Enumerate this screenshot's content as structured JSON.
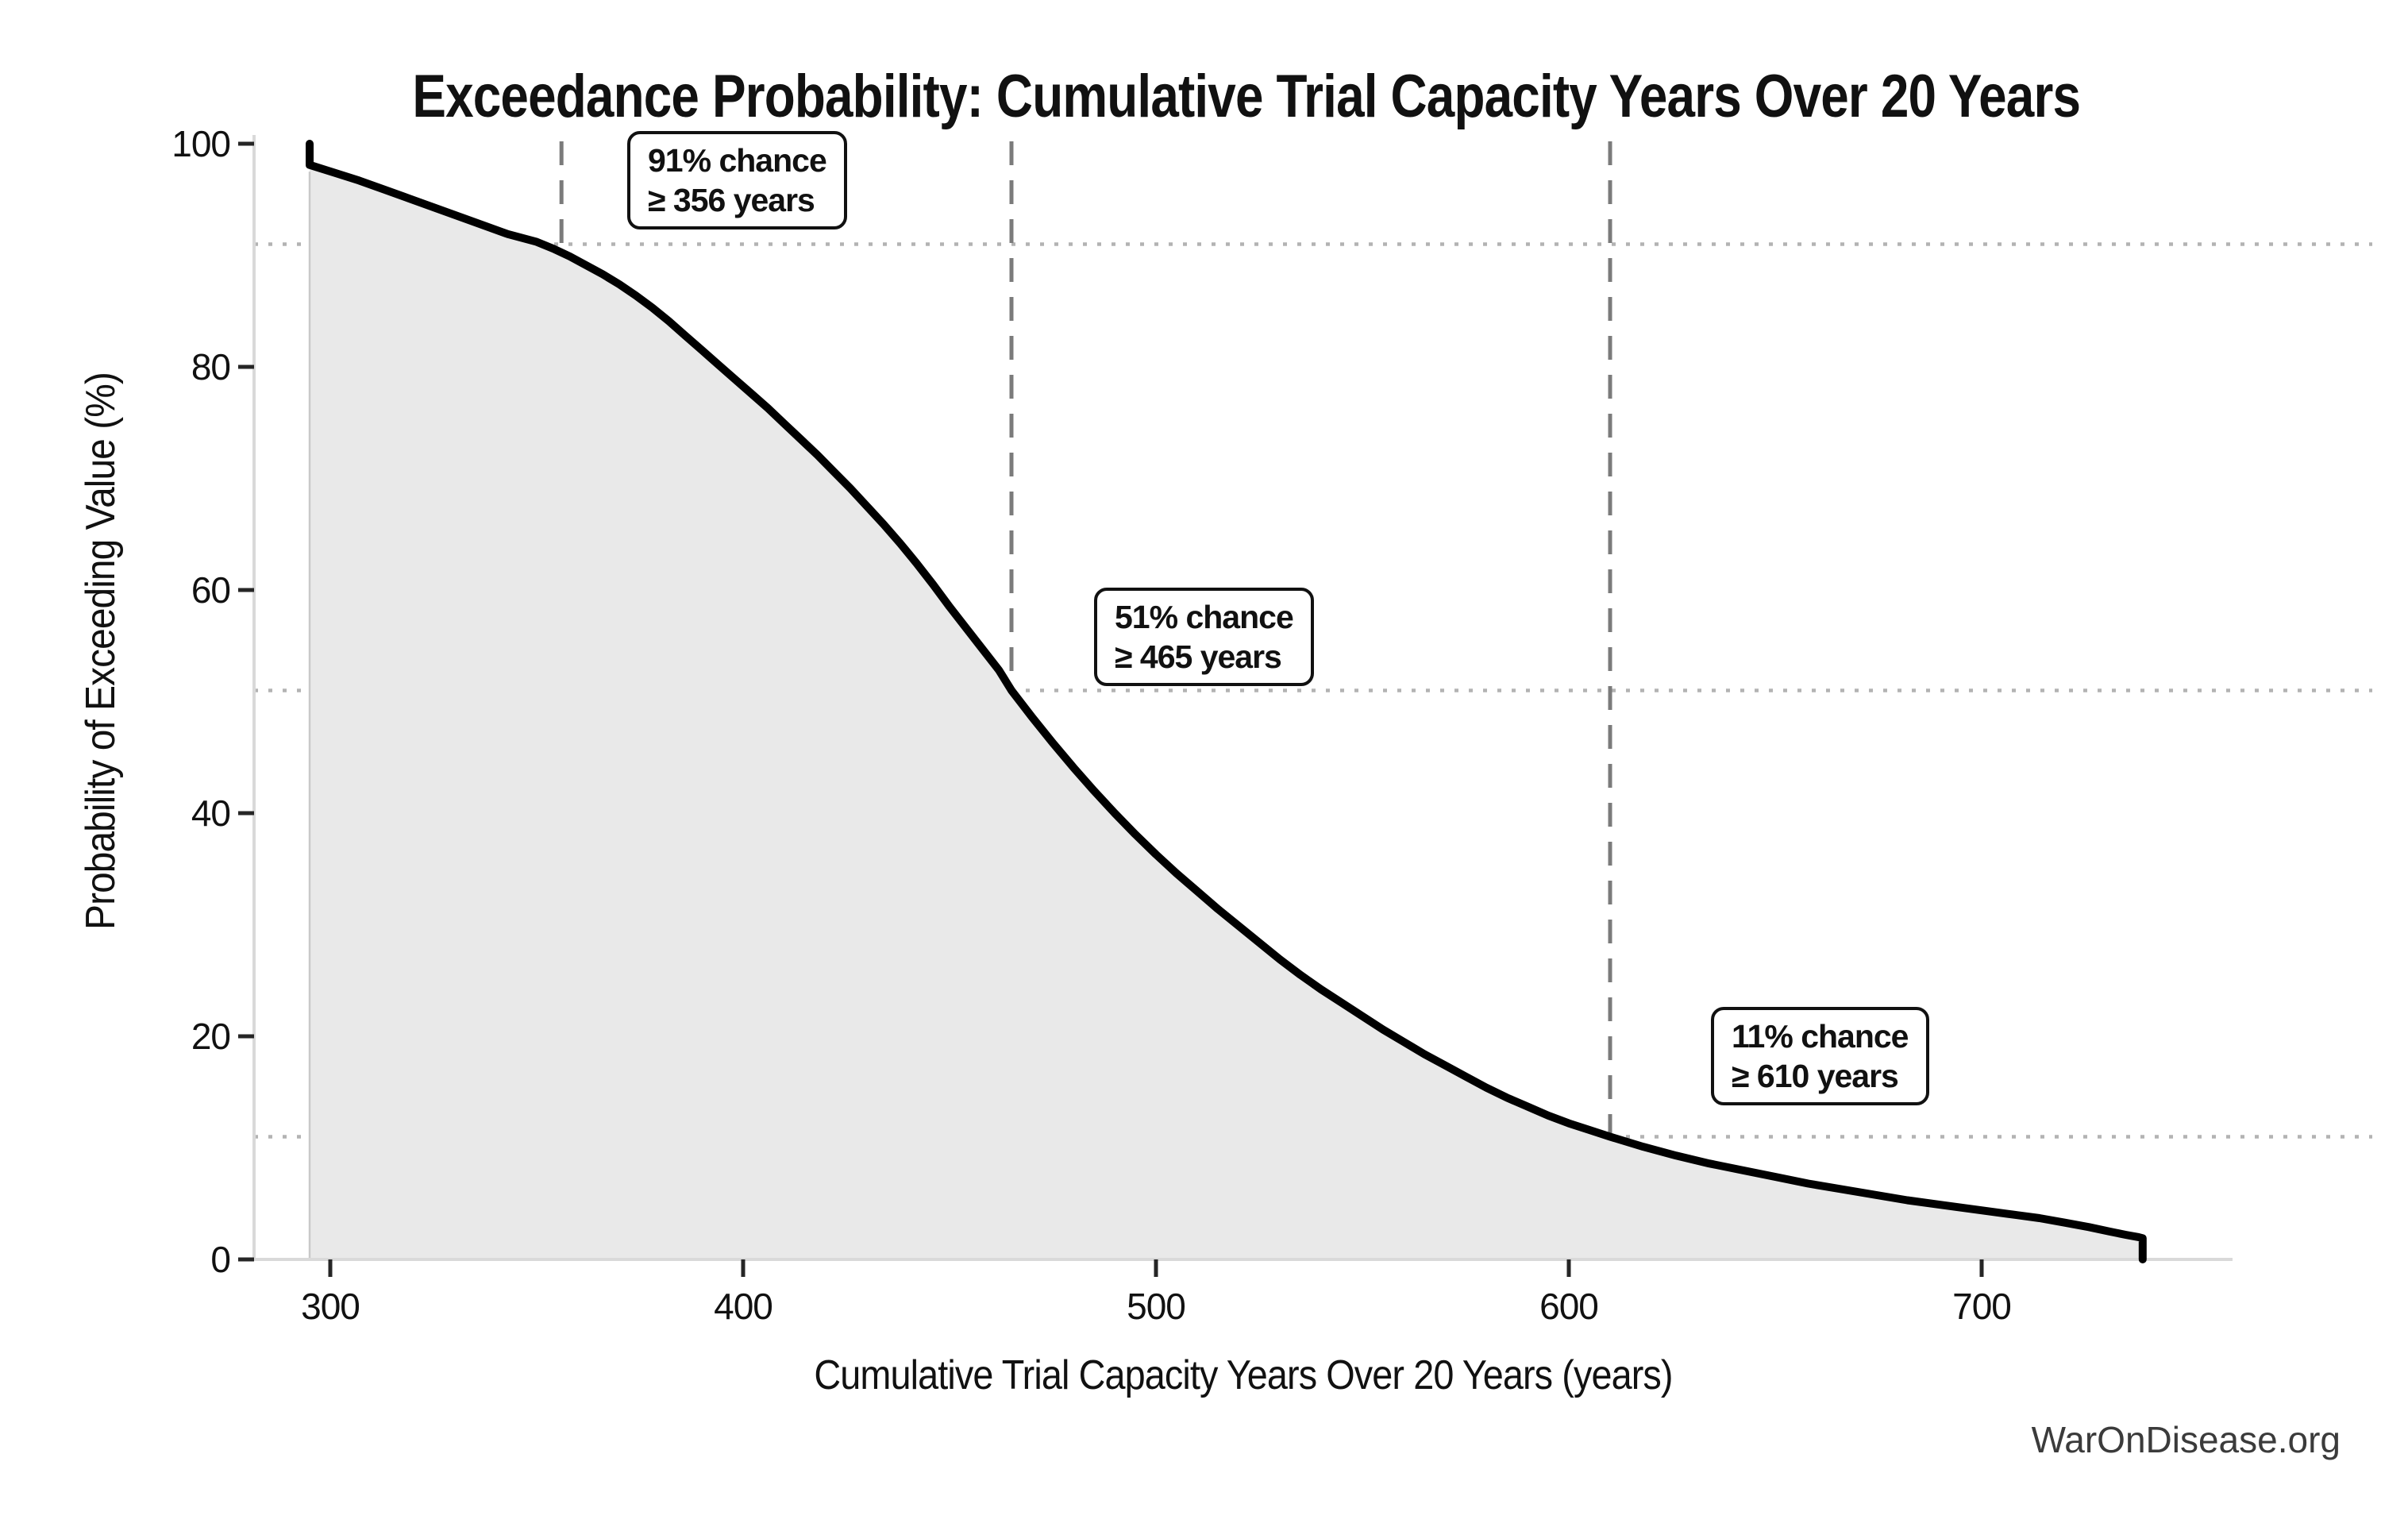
{
  "figure": {
    "watermark": "WarOnDisease.org"
  },
  "chart_data": {
    "type": "line",
    "subtype": "exceedance-probability-curve",
    "title": "Exceedance Probability: Cumulative Trial Capacity Years Over 20 Years",
    "xlabel": "Cumulative Trial Capacity Years Over 20 Years (years)",
    "ylabel": "Probability of Exceeding Value (%)",
    "x_ticks": [
      300,
      400,
      500,
      600,
      700
    ],
    "y_ticks": [
      0,
      20,
      40,
      60,
      80,
      100
    ],
    "xlim": [
      281,
      761
    ],
    "ylim": [
      0,
      101
    ],
    "legend_position": "none",
    "grid": "dotted horizontal reference lines at annotated probabilities; dashed vertical reference lines at annotated years",
    "line_color": "#000000",
    "fill_color": "#e9e9e9",
    "fill_edge_color": "#c9c9c9",
    "gridline_color": "#b3b3b3",
    "vline_color": "#7b7b7b",
    "spine_color": "#d9d9d9",
    "tick_color": "#262626",
    "text_color": "#111111",
    "watermark_color": "#3b3b3b",
    "annotations": [
      {
        "line1": "91% chance",
        "line2": "≥ 356 years",
        "probability_pct": 91,
        "value_years": 356
      },
      {
        "line1": "51% chance",
        "line2": "≥ 465 years",
        "probability_pct": 51,
        "value_years": 465
      },
      {
        "line1": "11% chance",
        "line2": "≥ 610 years",
        "probability_pct": 11,
        "value_years": 610
      }
    ],
    "curve": [
      [
        295,
        100
      ],
      [
        295,
        98.1
      ],
      [
        301,
        97.4
      ],
      [
        307,
        96.7
      ],
      [
        313,
        95.9
      ],
      [
        319,
        95.1
      ],
      [
        325,
        94.3
      ],
      [
        331,
        93.5
      ],
      [
        337,
        92.7
      ],
      [
        343,
        91.9
      ],
      [
        350,
        91.2
      ],
      [
        354,
        90.6
      ],
      [
        358,
        89.9
      ],
      [
        362,
        89.1
      ],
      [
        366,
        88.3
      ],
      [
        370,
        87.4
      ],
      [
        374,
        86.4
      ],
      [
        378,
        85.3
      ],
      [
        382,
        84.1
      ],
      [
        386,
        82.8
      ],
      [
        390,
        81.5
      ],
      [
        394,
        80.2
      ],
      [
        398,
        78.9
      ],
      [
        402,
        77.6
      ],
      [
        406,
        76.3
      ],
      [
        410,
        74.9
      ],
      [
        414,
        73.5
      ],
      [
        418,
        72.1
      ],
      [
        422,
        70.6
      ],
      [
        426,
        69.1
      ],
      [
        430,
        67.5
      ],
      [
        434,
        65.9
      ],
      [
        438,
        64.2
      ],
      [
        442,
        62.4
      ],
      [
        446,
        60.5
      ],
      [
        450,
        58.5
      ],
      [
        454,
        56.6
      ],
      [
        458,
        54.7
      ],
      [
        462,
        52.8
      ],
      [
        465,
        51.0
      ],
      [
        470,
        48.6
      ],
      [
        475,
        46.3
      ],
      [
        480,
        44.1
      ],
      [
        485,
        42.0
      ],
      [
        490,
        40.0
      ],
      [
        495,
        38.1
      ],
      [
        500,
        36.3
      ],
      [
        505,
        34.6
      ],
      [
        510,
        33.0
      ],
      [
        515,
        31.4
      ],
      [
        520,
        29.9
      ],
      [
        525,
        28.4
      ],
      [
        530,
        26.9
      ],
      [
        535,
        25.5
      ],
      [
        540,
        24.2
      ],
      [
        545,
        23.0
      ],
      [
        550,
        21.8
      ],
      [
        555,
        20.6
      ],
      [
        560,
        19.5
      ],
      [
        565,
        18.4
      ],
      [
        570,
        17.4
      ],
      [
        575,
        16.4
      ],
      [
        580,
        15.4
      ],
      [
        585,
        14.5
      ],
      [
        590,
        13.7
      ],
      [
        595,
        12.9
      ],
      [
        600,
        12.2
      ],
      [
        605,
        11.6
      ],
      [
        610,
        11.0
      ],
      [
        618,
        10.1
      ],
      [
        626,
        9.3
      ],
      [
        634,
        8.6
      ],
      [
        642,
        8.0
      ],
      [
        650,
        7.4
      ],
      [
        658,
        6.8
      ],
      [
        666,
        6.3
      ],
      [
        674,
        5.8
      ],
      [
        682,
        5.3
      ],
      [
        690,
        4.9
      ],
      [
        698,
        4.5
      ],
      [
        706,
        4.1
      ],
      [
        714,
        3.7
      ],
      [
        720,
        3.3
      ],
      [
        726,
        2.9
      ],
      [
        731,
        2.5
      ],
      [
        735,
        2.2
      ],
      [
        738,
        2.0
      ],
      [
        739,
        1.9
      ],
      [
        739,
        0
      ]
    ]
  }
}
